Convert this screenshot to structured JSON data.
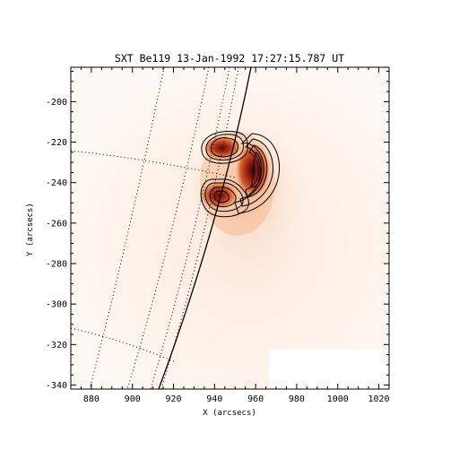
{
  "figure": {
    "title": "SXT Be119 13-Jan-1992 17:27:15.787 UT",
    "xlabel": "X (arcsecs)",
    "ylabel": "Y (arcsecs)",
    "xlim": [
      870,
      1025
    ],
    "ylim": [
      -342,
      -183
    ],
    "x_ticks": [
      880,
      900,
      920,
      940,
      960,
      980,
      1000,
      1020
    ],
    "y_ticks": [
      -200,
      -220,
      -240,
      -260,
      -280,
      -300,
      -320,
      -340
    ],
    "x_tick_labels": [
      "880",
      "900",
      "920",
      "940",
      "960",
      "980",
      "1000",
      "1020"
    ],
    "y_tick_labels": [
      "-200",
      "-220",
      "-240",
      "-260",
      "-280",
      "-300",
      "-320",
      "-340"
    ],
    "colormap": [
      "#ffffff",
      "#fbe7da",
      "#f3b488",
      "#d9612a",
      "#9e2010",
      "#3a0604"
    ],
    "emission_sources": [
      {
        "x": 958,
        "y": -236,
        "peak": 1.0
      },
      {
        "x": 944,
        "y": -250,
        "peak": 0.8
      },
      {
        "x": 948,
        "y": -226,
        "peak": 0.55
      }
    ],
    "contour_levels": 6
  }
}
